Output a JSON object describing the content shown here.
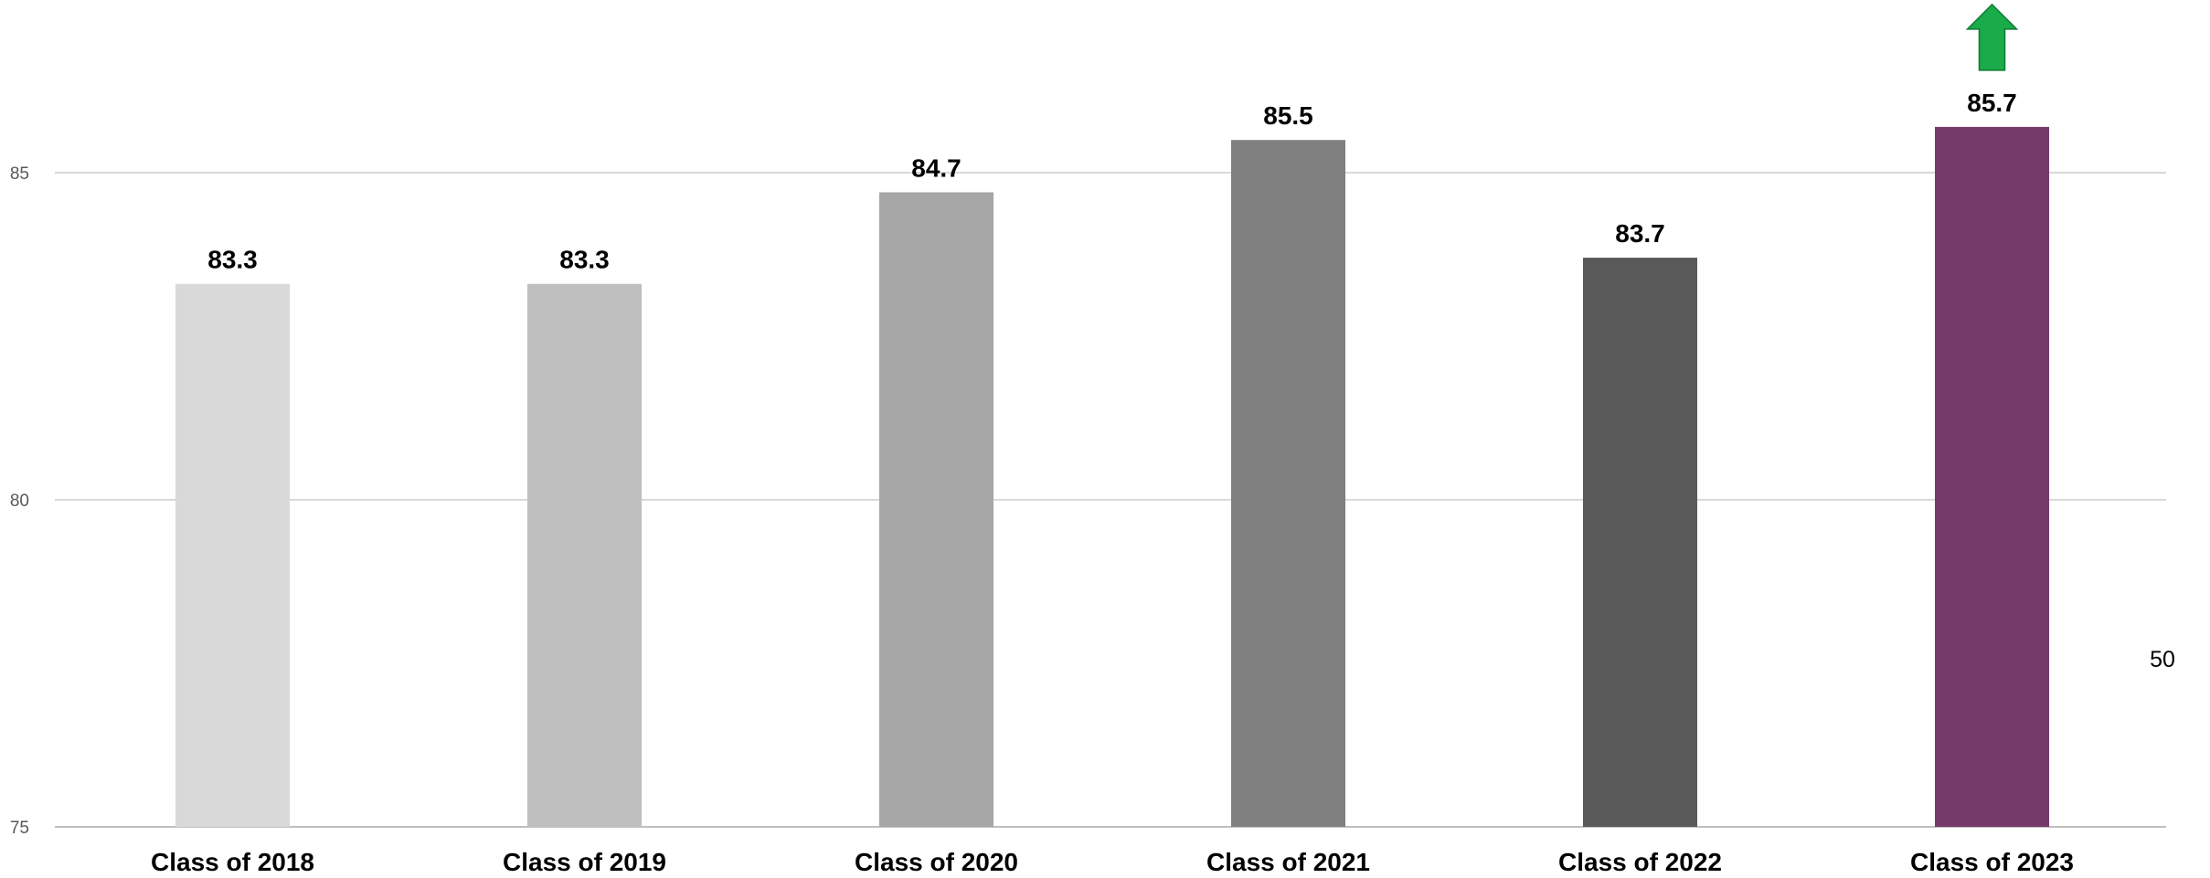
{
  "chart_data": {
    "type": "bar",
    "title": "",
    "xlabel": "",
    "ylabel": "",
    "categories": [
      "Class of 2018",
      "Class of 2019",
      "Class of 2020",
      "Class of 2021",
      "Class of 2022",
      "Class of 2023"
    ],
    "values": [
      83.3,
      83.3,
      84.7,
      85.5,
      83.7,
      85.7
    ],
    "data_labels": [
      "83.3",
      "83.3",
      "84.7",
      "85.5",
      "83.7",
      "85.7"
    ],
    "bar_colors": [
      "#d9d9d9",
      "#bfbfbf",
      "#a6a6a6",
      "#808080",
      "#595959",
      "#763a6a"
    ],
    "ylim": [
      75,
      86.5
    ],
    "yticks": [
      75,
      80,
      85
    ],
    "ytick_labels": [
      "75",
      "80",
      "85"
    ],
    "grid": true,
    "legend": "none",
    "annotations": {
      "up_arrow": {
        "category": "Class of 2023",
        "color": "#1aab4a",
        "icon": "up-arrow-icon"
      },
      "side_note": "50"
    }
  }
}
